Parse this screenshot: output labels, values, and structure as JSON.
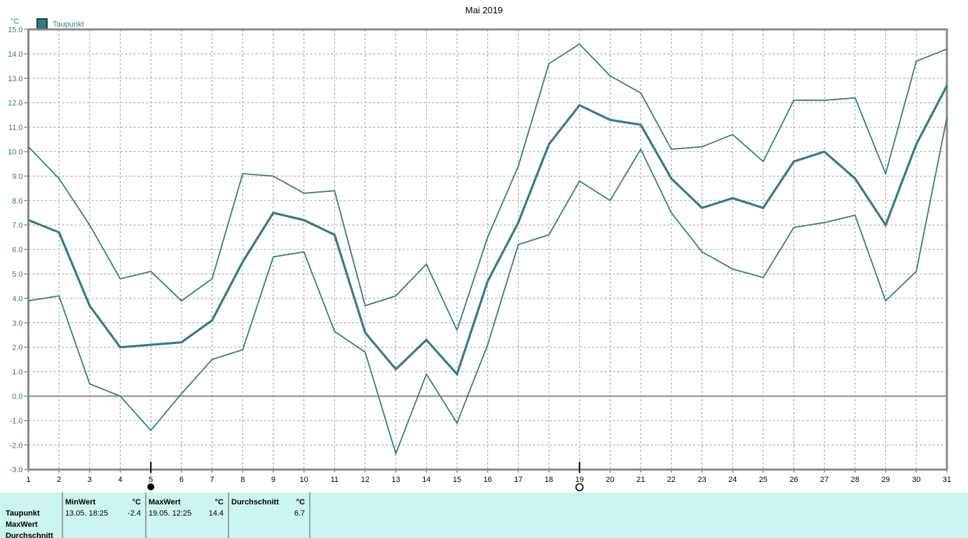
{
  "page": {
    "title": "Mai 2019",
    "unit_label": "°C"
  },
  "legend": {
    "label": "Taupunkt",
    "swatch_color": "#3C7B7B"
  },
  "colors": {
    "line": "#3C7B7B",
    "axis": "#8A8A8A",
    "grid_dash": "#9E9E9E",
    "zero_line": "#8A8A8A",
    "y_tick_label": "#3C7B7B",
    "x_tick_label": "#000000",
    "table_bg": "#CCF5F0",
    "table_divider": "#9E9E9E",
    "moon_marker": "#000000"
  },
  "chart_data": {
    "type": "line",
    "title": "Mai 2019",
    "ylabel": "°C",
    "xlabel": "",
    "ylim": [
      -3.0,
      15.0
    ],
    "grid": "dashed vertical per day, dashed horizontal per 1°C, solid line at 0°C",
    "legend_position": "top-left",
    "legend_entries": [
      "Taupunkt"
    ],
    "x": [
      1,
      2,
      3,
      4,
      5,
      6,
      7,
      8,
      9,
      10,
      11,
      12,
      13,
      14,
      15,
      16,
      17,
      18,
      19,
      20,
      21,
      22,
      23,
      24,
      25,
      26,
      27,
      28,
      29,
      30,
      31
    ],
    "xticks": [
      "1",
      "2",
      "3",
      "4",
      "5",
      "6",
      "7",
      "8",
      "9",
      "10",
      "11",
      "12",
      "13",
      "14",
      "15",
      "16",
      "17",
      "18",
      "19",
      "20",
      "21",
      "22",
      "23",
      "24",
      "25",
      "26",
      "27",
      "28",
      "29",
      "30",
      "31"
    ],
    "yticks": [
      "15.0",
      "14.0",
      "13.0",
      "12.0",
      "11.0",
      "10.0",
      "9.0",
      "8.0",
      "7.0",
      "6.0",
      "5.0",
      "4.0",
      "3.0",
      "2.0",
      "1.0",
      "0.0",
      "-1.0",
      "-2.0",
      "-3.0"
    ],
    "series": [
      {
        "name": "upper",
        "style": "thin",
        "values": [
          10.2,
          8.9,
          7.0,
          4.8,
          5.1,
          3.9,
          4.8,
          9.1,
          9.0,
          8.3,
          8.4,
          3.7,
          4.1,
          5.4,
          2.7,
          6.5,
          9.4,
          13.6,
          14.4,
          13.1,
          12.4,
          10.1,
          10.2,
          10.7,
          9.6,
          12.1,
          12.1,
          12.2,
          9.1,
          13.7,
          14.2
        ]
      },
      {
        "name": "middle",
        "style": "thick",
        "values": [
          7.2,
          6.7,
          3.7,
          2.0,
          2.1,
          2.2,
          3.1,
          5.5,
          7.5,
          7.2,
          6.6,
          2.6,
          1.1,
          2.3,
          0.9,
          4.7,
          7.1,
          10.3,
          11.9,
          11.3,
          11.1,
          8.9,
          7.7,
          8.1,
          7.7,
          9.6,
          10.0,
          8.9,
          7.0,
          10.3,
          12.7
        ]
      },
      {
        "name": "lower",
        "style": "thin",
        "values": [
          3.9,
          4.1,
          0.5,
          0.0,
          -1.4,
          0.1,
          1.5,
          1.9,
          5.7,
          5.9,
          2.65,
          1.8,
          -2.35,
          0.9,
          -1.1,
          2.1,
          6.2,
          6.6,
          8.8,
          8.0,
          10.1,
          7.5,
          5.9,
          5.2,
          4.85,
          6.9,
          7.1,
          7.4,
          3.9,
          5.1,
          11.4
        ]
      }
    ],
    "moon_markers": [
      {
        "day": 5,
        "symbol": "filled-circle"
      },
      {
        "day": 19,
        "symbol": "open-circle"
      }
    ]
  },
  "stats_table": {
    "row_labels": [
      "Taupunkt",
      "MaxWert",
      "Durchschnitt"
    ],
    "columns": [
      {
        "header": "MinWert",
        "unit": "°C",
        "time": "13.05. 18:25",
        "value": "-2.4"
      },
      {
        "header": "MaxWert",
        "unit": "°C",
        "time": "19.05. 12:25",
        "value": "14.4"
      },
      {
        "header": "Durchschnitt",
        "unit": "°C",
        "time": "",
        "value": "6.7"
      }
    ]
  }
}
